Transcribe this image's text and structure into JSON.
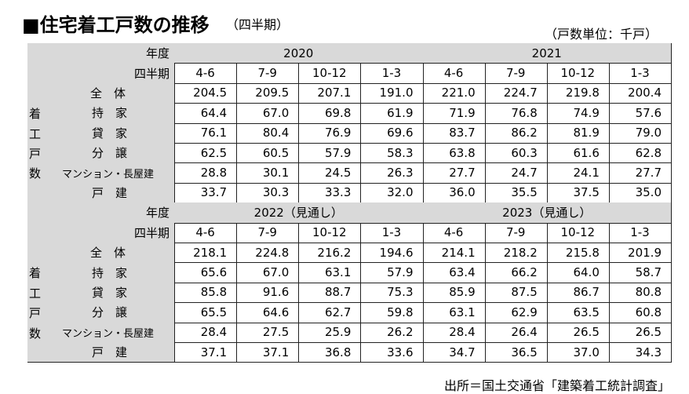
{
  "header": {
    "title": "■住宅着工戸数の推移",
    "subtitle": "（四半期）",
    "unit": "（戸数単位：千戸）"
  },
  "table": {
    "year_header": "年度",
    "quarter_header": "四半期",
    "side_label": [
      "着",
      "工",
      "戸",
      "数"
    ],
    "row_labels": [
      "全　体",
      "持　家",
      "貸　家",
      "分　譲",
      "マンション・長屋建",
      "戸　建"
    ],
    "blocks": [
      {
        "years": [
          "2020",
          "2021"
        ],
        "quarters": [
          "4-6",
          "7-9",
          "10-12",
          "1-3",
          "4-6",
          "7-9",
          "10-12",
          "1-3"
        ],
        "rows": [
          [
            "204.5",
            "209.5",
            "207.1",
            "191.0",
            "221.0",
            "224.7",
            "219.8",
            "200.4"
          ],
          [
            "64.4",
            "67.0",
            "69.8",
            "61.9",
            "71.9",
            "76.8",
            "74.9",
            "57.6"
          ],
          [
            "76.1",
            "80.4",
            "76.9",
            "69.6",
            "83.7",
            "86.2",
            "81.9",
            "79.0"
          ],
          [
            "62.5",
            "60.5",
            "57.9",
            "58.3",
            "63.8",
            "60.3",
            "61.6",
            "62.8"
          ],
          [
            "28.8",
            "30.1",
            "24.5",
            "26.3",
            "27.7",
            "24.7",
            "24.1",
            "27.7"
          ],
          [
            "33.7",
            "30.3",
            "33.3",
            "32.0",
            "36.0",
            "35.5",
            "37.5",
            "35.0"
          ]
        ]
      },
      {
        "years": [
          "2022（見通し）",
          "2023（見通し）"
        ],
        "quarters": [
          "4-6",
          "7-9",
          "10-12",
          "1-3",
          "4-6",
          "7-9",
          "10-12",
          "1-3"
        ],
        "rows": [
          [
            "218.1",
            "224.8",
            "216.2",
            "194.6",
            "214.1",
            "218.2",
            "215.8",
            "201.9"
          ],
          [
            "65.6",
            "67.0",
            "63.1",
            "57.9",
            "63.4",
            "66.2",
            "64.0",
            "58.7"
          ],
          [
            "85.8",
            "91.6",
            "88.7",
            "75.3",
            "85.9",
            "87.5",
            "86.7",
            "80.8"
          ],
          [
            "65.5",
            "64.6",
            "62.7",
            "59.8",
            "63.1",
            "62.9",
            "63.5",
            "60.8"
          ],
          [
            "28.4",
            "27.5",
            "25.9",
            "26.2",
            "28.4",
            "26.4",
            "26.5",
            "26.5"
          ],
          [
            "37.1",
            "37.1",
            "36.8",
            "33.6",
            "34.7",
            "36.5",
            "37.0",
            "34.3"
          ]
        ]
      }
    ]
  },
  "footer": {
    "source": "出所＝国土交通省「建築着工統計調査」"
  }
}
